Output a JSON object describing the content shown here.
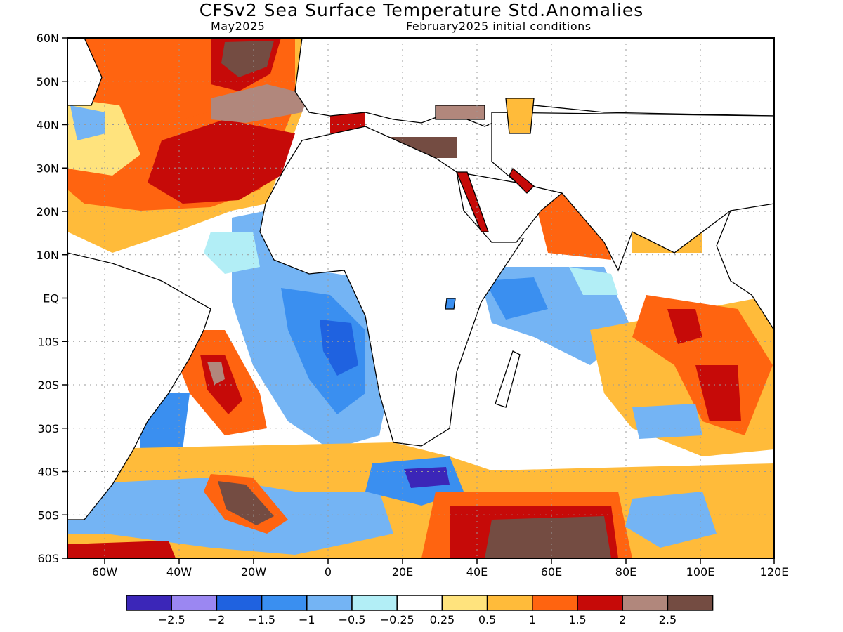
{
  "header": {
    "title": "CFSv2 Sea Surface Temperature Std.Anomalies",
    "valid_month": "May2025",
    "initial_conditions": "February2025 initial conditions"
  },
  "map": {
    "lat_ticks": [
      "60N",
      "50N",
      "40N",
      "30N",
      "20N",
      "10N",
      "EQ",
      "10S",
      "20S",
      "30S",
      "40S",
      "50S",
      "60S"
    ],
    "lon_ticks": [
      "60W",
      "40W",
      "20W",
      "0",
      "20E",
      "40E",
      "60E",
      "80E",
      "100E",
      "120E"
    ],
    "grid": "dotted"
  },
  "colorbar": {
    "colors": [
      "#3b26b8",
      "#9b87f2",
      "#1f62e0",
      "#3a8ff0",
      "#74b4f4",
      "#b2eef6",
      "#ffffff",
      "#ffe37d",
      "#ffbb3a",
      "#ff6410",
      "#c60a08",
      "#b1877c",
      "#744c42"
    ],
    "labels": [
      "−2.5",
      "−2",
      "−1.5",
      "−1",
      "−0.5",
      "−0.25",
      "0.25",
      "0.5",
      "1",
      "1.5",
      "2",
      "2.5"
    ]
  }
}
